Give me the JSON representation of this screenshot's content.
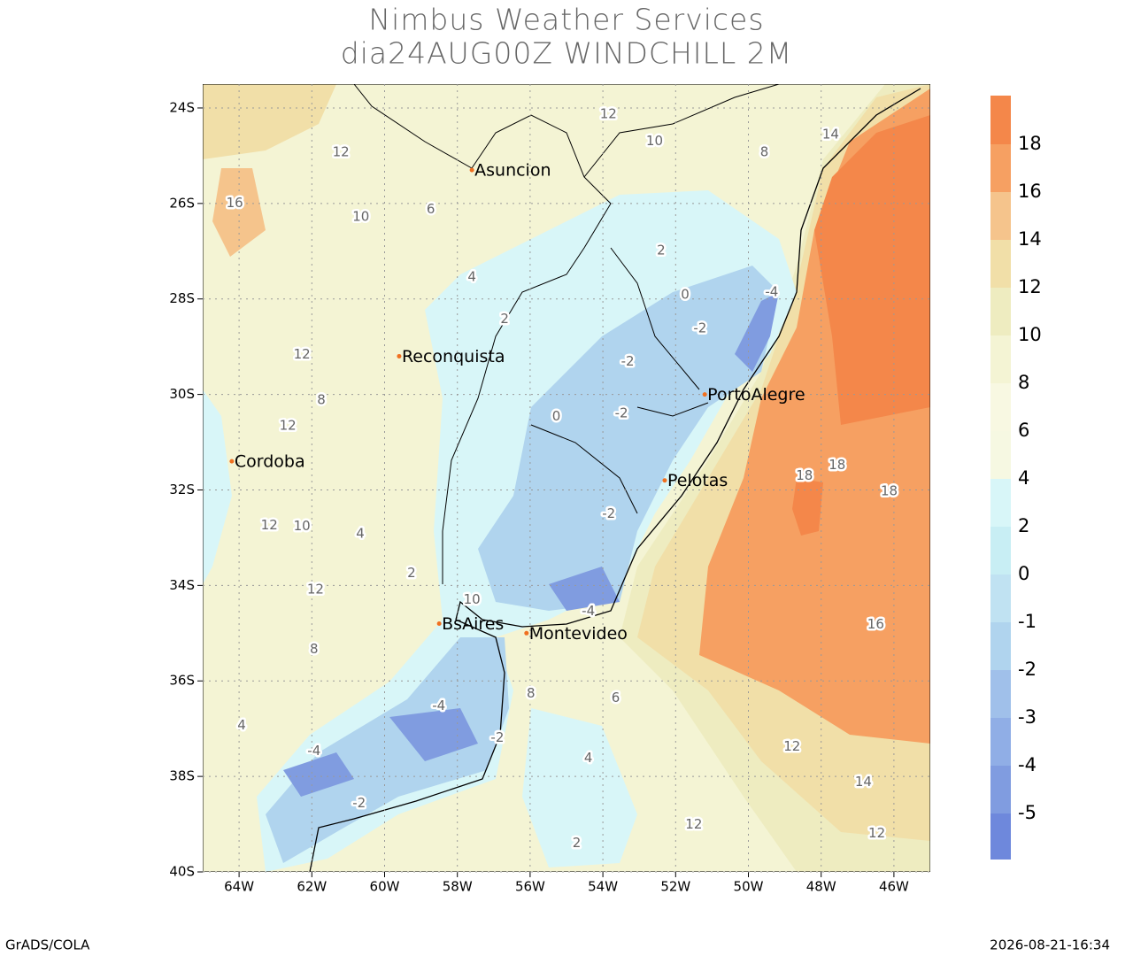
{
  "header": {
    "title": "Nimbus Weather Services",
    "subtitle": "dia24AUG00Z WINDCHILL 2M"
  },
  "map": {
    "lon_range": [
      -65,
      -45
    ],
    "lat_range": [
      -40,
      -23.5
    ],
    "grid": true,
    "lon_ticks": [
      {
        "value": -64,
        "label": "64W"
      },
      {
        "value": -62,
        "label": "62W"
      },
      {
        "value": -60,
        "label": "60W"
      },
      {
        "value": -58,
        "label": "58W"
      },
      {
        "value": -56,
        "label": "56W"
      },
      {
        "value": -54,
        "label": "54W"
      },
      {
        "value": -52,
        "label": "52W"
      },
      {
        "value": -50,
        "label": "50W"
      },
      {
        "value": -48,
        "label": "48W"
      },
      {
        "value": -46,
        "label": "46W"
      }
    ],
    "lat_ticks": [
      {
        "value": -24,
        "label": "24S"
      },
      {
        "value": -26,
        "label": "26S"
      },
      {
        "value": -28,
        "label": "28S"
      },
      {
        "value": -30,
        "label": "30S"
      },
      {
        "value": -32,
        "label": "32S"
      },
      {
        "value": -34,
        "label": "34S"
      },
      {
        "value": -36,
        "label": "36S"
      },
      {
        "value": -38,
        "label": "38S"
      },
      {
        "value": -40,
        "label": "40S"
      }
    ],
    "cities": [
      {
        "name": "Asuncion",
        "lon": -57.6,
        "lat": -25.3
      },
      {
        "name": "Reconquista",
        "lon": -59.6,
        "lat": -29.2
      },
      {
        "name": "Cordoba",
        "lon": -64.2,
        "lat": -31.4
      },
      {
        "name": "PortoAlegre",
        "lon": -51.2,
        "lat": -30.0
      },
      {
        "name": "Pelotas",
        "lon": -52.3,
        "lat": -31.8
      },
      {
        "name": "BsAires",
        "lon": -58.5,
        "lat": -34.8
      },
      {
        "name": "Montevideo",
        "lon": -56.1,
        "lat": -35.0
      }
    ],
    "contour_labels": [
      {
        "value": 12,
        "lon": -61.2,
        "lat": -24.93
      },
      {
        "value": 16,
        "lon": -64.12,
        "lat": -25.99
      },
      {
        "value": 10,
        "lon": -60.65,
        "lat": -26.28
      },
      {
        "value": 12,
        "lon": -53.85,
        "lat": -24.13
      },
      {
        "value": 8,
        "lon": -49.56,
        "lat": -24.93
      },
      {
        "value": 14,
        "lon": -47.74,
        "lat": -24.56
      },
      {
        "value": 6,
        "lon": -58.73,
        "lat": -26.12
      },
      {
        "value": 4,
        "lon": -57.6,
        "lat": -27.54
      },
      {
        "value": 2,
        "lon": -56.7,
        "lat": -28.42
      },
      {
        "value": 0,
        "lon": -51.74,
        "lat": -27.91
      },
      {
        "value": -2,
        "lon": -51.33,
        "lat": -28.62
      },
      {
        "value": -4,
        "lon": -49.36,
        "lat": -27.86
      },
      {
        "value": 0,
        "lon": -55.28,
        "lat": -30.46
      },
      {
        "value": -2,
        "lon": -53.49,
        "lat": -30.4
      },
      {
        "value": 18,
        "lon": -48.46,
        "lat": -31.7
      },
      {
        "value": 18,
        "lon": -47.56,
        "lat": -31.48
      },
      {
        "value": 18,
        "lon": -46.13,
        "lat": -32.03
      },
      {
        "value": 16,
        "lon": -46.5,
        "lat": -34.82
      },
      {
        "value": 12,
        "lon": -48.8,
        "lat": -37.38
      },
      {
        "value": 14,
        "lon": -46.84,
        "lat": -38.12
      },
      {
        "value": 12,
        "lon": -51.5,
        "lat": -39.01
      },
      {
        "value": 12,
        "lon": -46.47,
        "lat": -39.19
      },
      {
        "value": -2,
        "lon": -53.84,
        "lat": -32.5
      },
      {
        "value": -4,
        "lon": -54.4,
        "lat": -34.54
      },
      {
        "value": -4,
        "lon": -58.51,
        "lat": -36.52
      },
      {
        "value": -2,
        "lon": -56.9,
        "lat": -37.19
      },
      {
        "value": -4,
        "lon": -61.94,
        "lat": -37.47
      },
      {
        "value": -2,
        "lon": -60.7,
        "lat": -38.56
      },
      {
        "value": 4,
        "lon": -54.4,
        "lat": -37.62
      },
      {
        "value": 6,
        "lon": -53.65,
        "lat": -36.36
      },
      {
        "value": 8,
        "lon": -55.98,
        "lat": -36.26
      },
      {
        "value": 2,
        "lon": -54.72,
        "lat": -39.4
      },
      {
        "value": 12,
        "lon": -62.27,
        "lat": -29.16
      },
      {
        "value": 8,
        "lon": -61.74,
        "lat": -30.12
      },
      {
        "value": 12,
        "lon": -62.66,
        "lat": -30.66
      },
      {
        "value": 12,
        "lon": -63.17,
        "lat": -32.74
      },
      {
        "value": 10,
        "lon": -62.27,
        "lat": -32.76
      },
      {
        "value": 12,
        "lon": -61.9,
        "lat": -34.09
      },
      {
        "value": 4,
        "lon": -60.67,
        "lat": -32.92
      },
      {
        "value": 2,
        "lon": -59.26,
        "lat": -33.74
      },
      {
        "value": 10,
        "lon": -57.6,
        "lat": -34.3
      },
      {
        "value": 8,
        "lon": -61.94,
        "lat": -35.34
      },
      {
        "value": 4,
        "lon": -63.93,
        "lat": -36.93
      },
      {
        "value": 10,
        "lon": -52.58,
        "lat": -24.7
      },
      {
        "value": 2,
        "lon": -52.4,
        "lat": -26.99
      },
      {
        "value": -2,
        "lon": -53.32,
        "lat": -29.31
      }
    ]
  },
  "colorbar": {
    "levels": [
      -5,
      -4,
      -3,
      -2,
      -1,
      0,
      2,
      4,
      6,
      8,
      10,
      12,
      14,
      16,
      18
    ],
    "colors": [
      "#6e88dc",
      "#809ce0",
      "#90aee6",
      "#a0c0ea",
      "#b0d4ee",
      "#c0e2f2",
      "#c8eef4",
      "#d8f6f8",
      "#f6f8e2",
      "#f8f8e2",
      "#f4f4d4",
      "#eeecc0",
      "#f1dfa8",
      "#f5c48c",
      "#f6a062",
      "#f4874a"
    ]
  },
  "footer": {
    "left": "GrADS/COLA",
    "right": "2026-08-21-16:34"
  }
}
